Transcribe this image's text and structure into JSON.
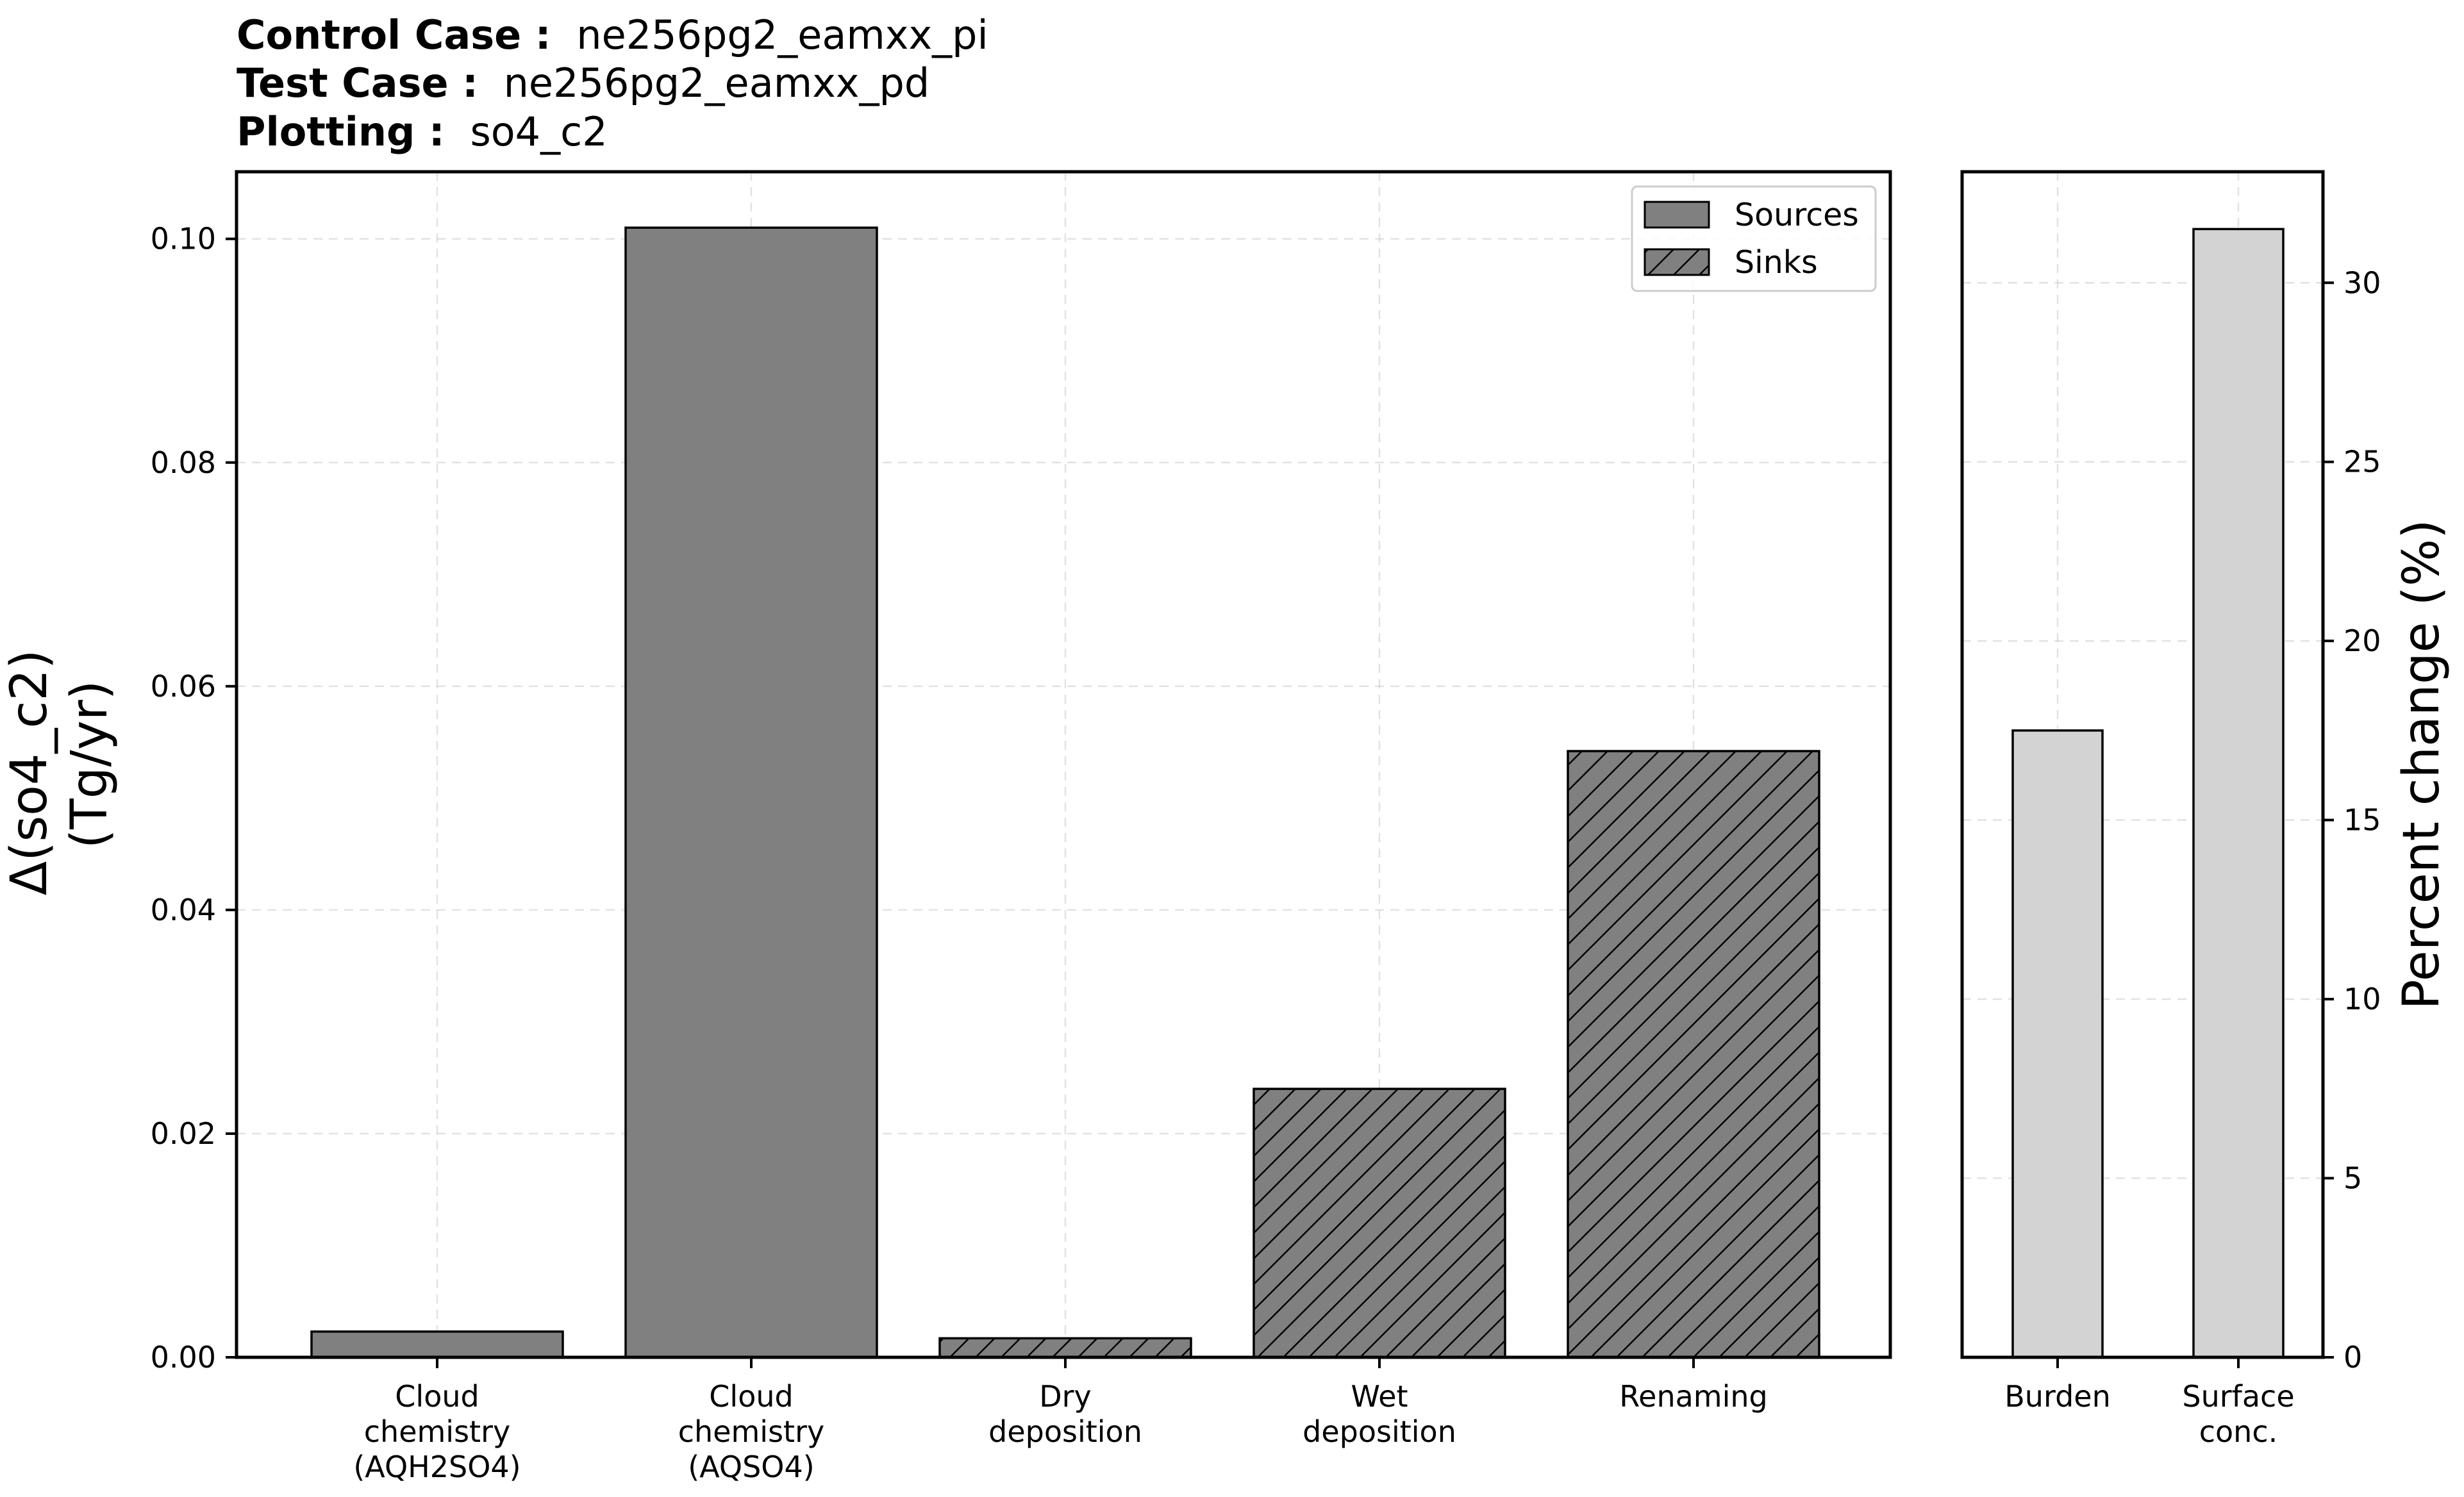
{
  "header": {
    "control_label": "Control Case :",
    "control_value": "ne256pg2_eamxx_pi",
    "test_label": "Test Case :",
    "test_value": "ne256pg2_eamxx_pd",
    "plotting_label": "Plotting :",
    "plotting_value": "so4_c2"
  },
  "chart_data": [
    {
      "type": "bar",
      "ylabel_line1": "Δ(so4_c2)",
      "ylabel_line2": "(Tg/yr)",
      "ylim": [
        0,
        0.106
      ],
      "yticks": [
        "0.00",
        "0.02",
        "0.04",
        "0.06",
        "0.08",
        "0.10"
      ],
      "grid": true,
      "legend_position": "top-right",
      "legend": [
        "Sources",
        "Sinks"
      ],
      "categories": [
        [
          "Cloud",
          "chemistry",
          "(AQH2SO4)"
        ],
        [
          "Cloud",
          "chemistry",
          "(AQSO4)"
        ],
        [
          "Dry",
          "deposition"
        ],
        [
          "Wet",
          "deposition"
        ],
        [
          "Renaming"
        ]
      ],
      "values": [
        0.0023,
        0.101,
        0.0017,
        0.024,
        0.0542
      ],
      "kind": [
        "Sources",
        "Sources",
        "Sinks",
        "Sinks",
        "Sinks"
      ],
      "bar_color": "#808080"
    },
    {
      "type": "bar",
      "ylabel": "Percent change (%)",
      "ylim": [
        0,
        33.1
      ],
      "yticks": [
        "0",
        "5",
        "10",
        "15",
        "20",
        "25",
        "30"
      ],
      "grid": true,
      "categories": [
        [
          "Burden"
        ],
        [
          "Surface",
          "conc."
        ]
      ],
      "values": [
        17.5,
        31.5
      ],
      "bar_color": "#d3d3d3"
    }
  ]
}
